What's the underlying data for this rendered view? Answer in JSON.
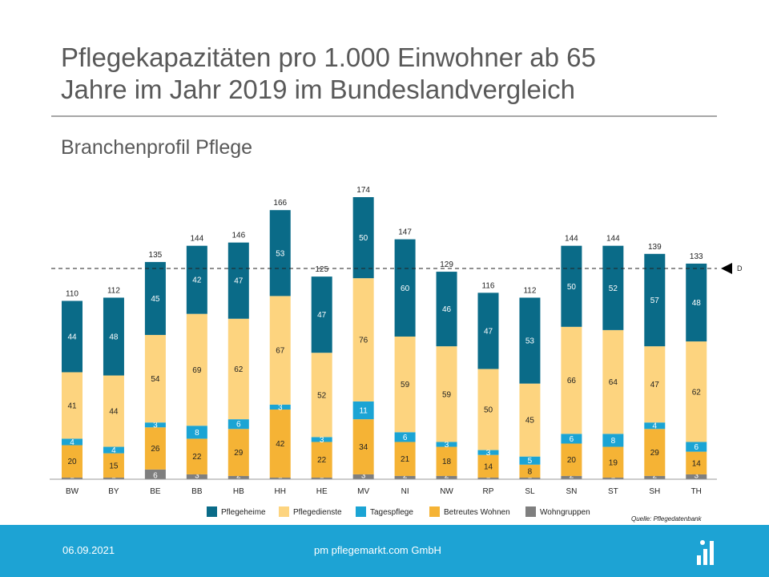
{
  "title": "Pflegekapazitäten  pro 1.000 Einwohner ab 65\nJahre im Jahr 2019 im Bundeslandvergleich",
  "subtitle": "Branchenprofil Pflege",
  "source": "Quelle: Pflegedatenbank",
  "footer": {
    "date": "06.09.2021",
    "company": "pm pflegemarkt.com GmbH"
  },
  "chart_data": {
    "type": "bar",
    "stacked": true,
    "categories": [
      "BW",
      "BY",
      "BE",
      "BB",
      "HB",
      "HH",
      "HE",
      "MV",
      "NI",
      "NW",
      "RP",
      "SL",
      "SN",
      "ST",
      "SH",
      "TH"
    ],
    "totals": [
      110,
      112,
      135,
      144,
      146,
      166,
      125,
      174,
      147,
      129,
      116,
      112,
      144,
      144,
      139,
      133
    ],
    "series": [
      {
        "name": "Wohngruppen",
        "color": "#7f7f7f",
        "values": [
          1,
          1,
          6,
          3,
          2,
          1,
          1,
          3,
          2,
          2,
          1,
          1,
          2,
          1,
          2,
          3
        ]
      },
      {
        "name": "Betreutes Wohnen",
        "color": "#f5b335",
        "values": [
          20,
          15,
          26,
          22,
          29,
          42,
          22,
          34,
          21,
          18,
          14,
          8,
          20,
          19,
          29,
          14
        ]
      },
      {
        "name": "Tagespflege",
        "color": "#1ba4d4",
        "values": [
          4,
          4,
          3,
          8,
          6,
          3,
          3,
          11,
          6,
          3,
          3,
          5,
          6,
          8,
          4,
          6
        ]
      },
      {
        "name": "Pflegedienste",
        "color": "#fdd47f",
        "values": [
          41,
          44,
          54,
          69,
          62,
          67,
          52,
          76,
          59,
          59,
          50,
          45,
          66,
          64,
          47,
          62
        ]
      },
      {
        "name": "Pflegeheime",
        "color": "#0a6b88",
        "values": [
          44,
          48,
          45,
          42,
          47,
          53,
          47,
          50,
          60,
          46,
          47,
          53,
          50,
          52,
          57,
          48
        ]
      }
    ],
    "legend_order": [
      "Pflegeheime",
      "Pflegedienste",
      "Tagespflege",
      "Betreutes Wohnen",
      "Wohngruppen"
    ],
    "reference_line": {
      "value": 130,
      "label": "D"
    },
    "ylim": [
      0,
      174
    ],
    "legend_position": "bottom"
  }
}
